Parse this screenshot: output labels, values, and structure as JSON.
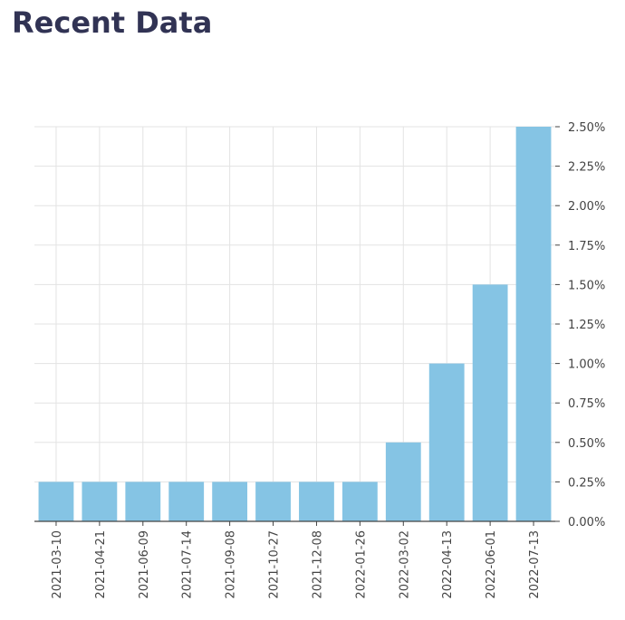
{
  "header": {
    "title": "Recent Data"
  },
  "colors": {
    "bar": "#85C4E4",
    "grid": "#E3E3E3",
    "axis": "#444444",
    "text": "#444444",
    "title": "#313354"
  },
  "chart_data": {
    "type": "bar",
    "title": "",
    "xlabel": "",
    "ylabel": "",
    "categories": [
      "2021-03-10",
      "2021-04-21",
      "2021-06-09",
      "2021-07-14",
      "2021-09-08",
      "2021-10-27",
      "2021-12-08",
      "2022-01-26",
      "2022-03-02",
      "2022-04-13",
      "2022-06-01",
      "2022-07-13"
    ],
    "values": [
      0.25,
      0.25,
      0.25,
      0.25,
      0.25,
      0.25,
      0.25,
      0.25,
      0.5,
      1.0,
      1.5,
      2.5
    ],
    "value_unit": "%",
    "ylim": [
      0,
      2.5
    ],
    "yticks": [
      "0.00%",
      "0.25%",
      "0.50%",
      "0.75%",
      "1.00%",
      "1.25%",
      "1.50%",
      "1.75%",
      "2.00%",
      "2.25%",
      "2.50%"
    ],
    "y_axis_side": "right",
    "grid": true,
    "legend": "none"
  }
}
